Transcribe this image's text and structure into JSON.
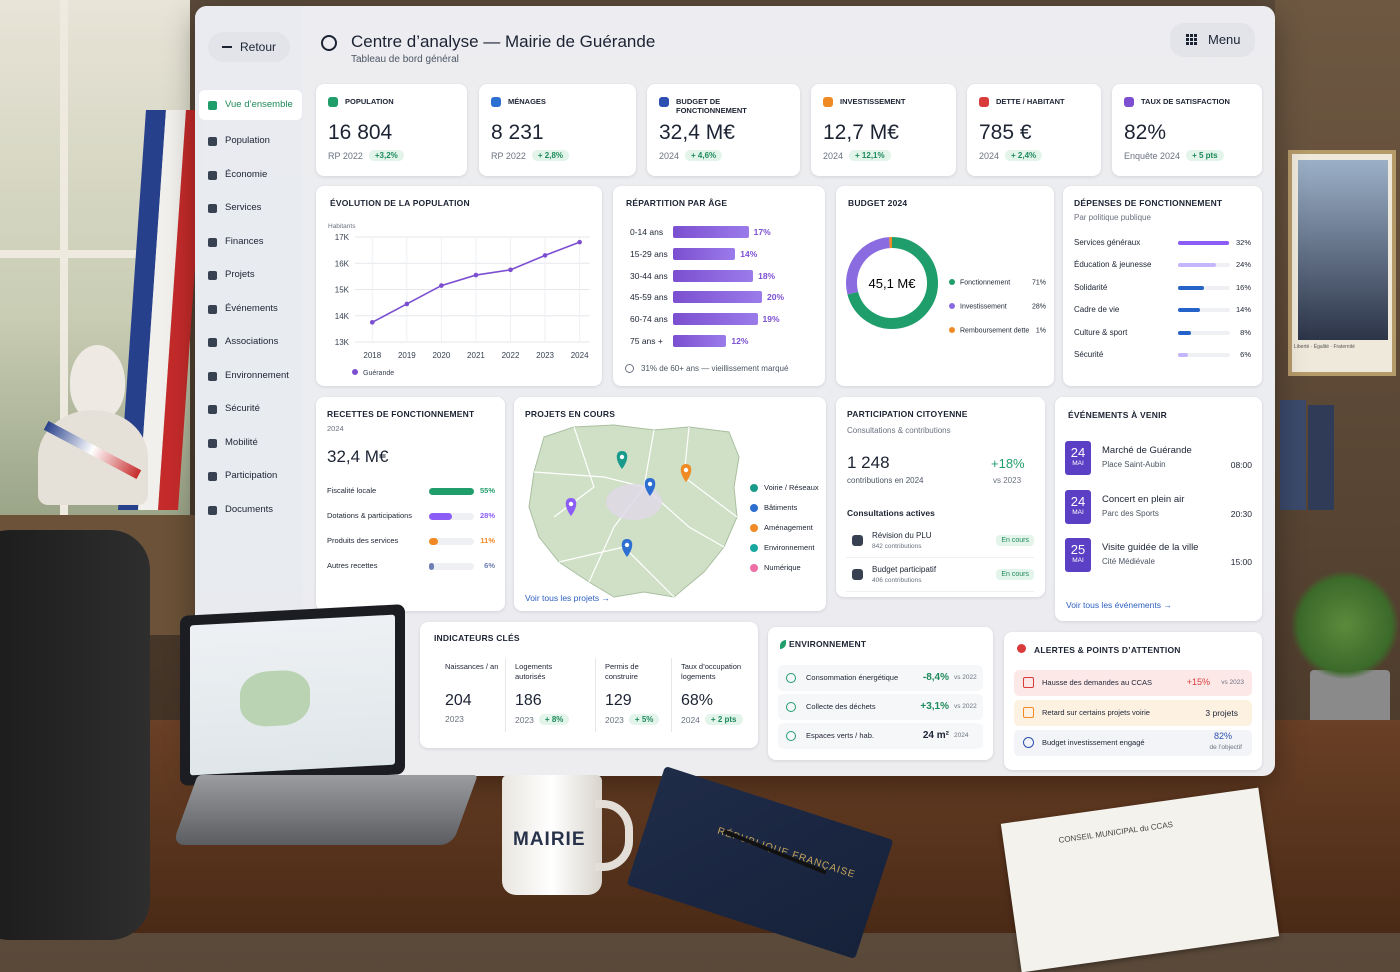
{
  "scene": {
    "mug": "MAIRIE",
    "notebook": "RÉPUBLIQUE FRANÇAISE",
    "papers": "CONSEIL MUNICIPAL du CCAS",
    "portrait": "Liberté · Égalité · Fraternité"
  },
  "header": {
    "back": "Retour",
    "title": "Centre d’analyse — Mairie de Guérande",
    "subtitle": "Tableau de bord général",
    "menu": "Menu"
  },
  "sidebar": {
    "items": [
      "Vue d’ensemble",
      "Population",
      "Économie",
      "Services",
      "Finances",
      "Projets",
      "Événements",
      "Associations",
      "Environnement",
      "Sécurité",
      "Mobilité",
      "Participation",
      "Documents"
    ],
    "active": 0
  },
  "kpis": [
    {
      "label": "POPULATION",
      "value": "16 804",
      "note": "RP 2022",
      "delta": "+3,2%"
    },
    {
      "label": "MÉNAGES",
      "value": "8 231",
      "note": "RP 2022",
      "delta": "+ 2,8%"
    },
    {
      "label": "BUDGET DE FONCTIONNEMENT",
      "value": "32,4 M€",
      "note": "2024",
      "delta": "+ 4,6%"
    },
    {
      "label": "INVESTISSEMENT",
      "value": "12,7 M€",
      "note": "2024",
      "delta": "+ 12,1%"
    },
    {
      "label": "DETTE / HABITANT",
      "value": "785 €",
      "note": "2024",
      "delta": "+ 2,4%"
    },
    {
      "label": "TAUX DE SATISFACTION",
      "value": "82%",
      "note": "Enquête 2024",
      "delta": "+ 5 pts"
    }
  ],
  "population_chart": {
    "type": "line",
    "title": "ÉVOLUTION DE LA POPULATION",
    "y_label": "Habitants",
    "x": [
      2018,
      2019,
      2020,
      2021,
      2022,
      2023,
      2024
    ],
    "xlim": [
      2017.5,
      2024.3
    ],
    "series": [
      {
        "name": "Guérande",
        "color": "#7b4fd0",
        "values": [
          13750,
          14450,
          15150,
          15550,
          15750,
          16300,
          16804
        ]
      }
    ],
    "ylim": [
      13000,
      17000
    ],
    "yticks": [
      {
        "value": 13000,
        "label": "13K"
      },
      {
        "value": 14000,
        "label": "14K"
      },
      {
        "value": 15000,
        "label": "15K"
      },
      {
        "value": 16000,
        "label": "16K"
      },
      {
        "value": 17000,
        "label": "17K"
      }
    ],
    "grid": true
  },
  "age_chart": {
    "type": "bar",
    "title": "RÉPARTITION PAR ÂGE",
    "categories": [
      "0-14 ans",
      "15-29 ans",
      "30-44 ans",
      "45-59 ans",
      "60-74 ans",
      "75 ans +"
    ],
    "values": [
      17,
      14,
      18,
      20,
      19,
      12
    ],
    "value_labels": [
      "17%",
      "14%",
      "18%",
      "20%",
      "19%",
      "12%"
    ],
    "color": "#7b4fd0",
    "note": "31% de 60+ ans — vieillissement marqué"
  },
  "budget_chart": {
    "type": "pie",
    "title": "BUDGET 2024",
    "center": "45,1 M€",
    "series": [
      {
        "name": "Fonctionnement",
        "value": 71,
        "value_label": "71%",
        "color": "#1f9d6b"
      },
      {
        "name": "Investissement",
        "value": 28,
        "value_label": "28%",
        "color": "#8b6be0"
      },
      {
        "name": "Remboursement dette",
        "value": 1,
        "value_label": "1%",
        "color": "#f08a24"
      }
    ]
  },
  "spending_chart": {
    "type": "bar",
    "title": "DÉPENSES DE FONCTIONNEMENT",
    "subtitle": "Par politique publique",
    "categories": [
      "Services généraux",
      "Éducation & jeunesse",
      "Solidarité",
      "Cadre de vie",
      "Culture & sport",
      "Sécurité"
    ],
    "values": [
      32,
      24,
      16,
      14,
      8,
      6
    ],
    "value_labels": [
      "32%",
      "24%",
      "16%",
      "14%",
      "8%",
      "6%"
    ],
    "colors": [
      "#8b5cf6",
      "#c4b5fd",
      "#2563c9",
      "#2563c9",
      "#2563c9",
      "#c4b5fd"
    ]
  },
  "revenue_chart": {
    "type": "bar",
    "title": "RECETTES DE FONCTIONNEMENT",
    "year": "2024",
    "total": "32,4 M€",
    "categories": [
      "Fiscalité locale",
      "Dotations & participations",
      "Produits des services",
      "Autres recettes"
    ],
    "values": [
      55,
      28,
      11,
      6
    ],
    "value_labels": [
      "55%",
      "28%",
      "11%",
      "6%"
    ],
    "colors": [
      "#1f9d6b",
      "#8b5cf6",
      "#f08a24",
      "#6d7fb3"
    ]
  },
  "projects": {
    "title": "PROJETS EN COURS",
    "legend": [
      {
        "name": "Voirie / Réseaux",
        "color": "#1a9a8a"
      },
      {
        "name": "Bâtiments",
        "color": "#2d6fd1"
      },
      {
        "name": "Aménagement",
        "color": "#f08a24"
      },
      {
        "name": "Environnement",
        "color": "#19a7a0"
      },
      {
        "name": "Numérique",
        "color": "#ec6fa5"
      }
    ],
    "link": "Voir tous les projets →"
  },
  "participation": {
    "title": "PARTICIPATION CITOYENNE",
    "subtitle": "Consultations & contributions",
    "count": "1 248",
    "count_note": "contributions en 2024",
    "delta": "+18%",
    "delta_note": "vs 2023",
    "section": "Consultations actives",
    "items": [
      {
        "name": "Révision du PLU",
        "note": "842 contributions",
        "status": "En cours"
      },
      {
        "name": "Budget participatif",
        "note": "406 contributions",
        "status": "En cours"
      }
    ]
  },
  "events": {
    "title": "ÉVÉNEMENTS À VENIR",
    "items": [
      {
        "day": "24",
        "month": "MAI",
        "name": "Marché de Guérande",
        "place": "Place Saint-Aubin",
        "time": "08:00"
      },
      {
        "day": "24",
        "month": "MAI",
        "name": "Concert en plein air",
        "place": "Parc des Sports",
        "time": "20:30"
      },
      {
        "day": "25",
        "month": "MAI",
        "name": "Visite guidée de la ville",
        "place": "Cité Médiévale",
        "time": "15:00"
      }
    ],
    "link": "Voir tous les événements →"
  },
  "indicators": {
    "title": "INDICATEURS CLÉS",
    "items": [
      {
        "label": "Naissances / an",
        "value": "204",
        "year": "2023"
      },
      {
        "label": "Logements autorisés",
        "value": "186",
        "year": "2023",
        "delta": "+ 8%"
      },
      {
        "label": "Permis de construire",
        "value": "129",
        "year": "2023",
        "delta": "+ 5%"
      },
      {
        "label": "Taux d’occupation logements",
        "value": "68%",
        "year": "2024",
        "delta": "+ 2 pts"
      }
    ]
  },
  "environment": {
    "title": "ENVIRONNEMENT",
    "items": [
      {
        "label": "Consommation énergétique",
        "value": "-8,4%",
        "note": "vs 2022"
      },
      {
        "label": "Collecte des déchets",
        "value": "+3,1%",
        "note": "vs 2022"
      },
      {
        "label": "Espaces verts / hab.",
        "value": "24 m²",
        "note": "2024"
      }
    ]
  },
  "alerts": {
    "title": "ALERTES & POINTS D’ATTENTION",
    "items": [
      {
        "text": "Hausse des demandes au CCAS",
        "value": "+15%",
        "note": "vs 2023"
      },
      {
        "text": "Retard sur certains projets voirie",
        "value": "3 projets"
      },
      {
        "text": "Budget investissement engagé",
        "value": "82%",
        "note": "de l’objectif"
      }
    ]
  }
}
